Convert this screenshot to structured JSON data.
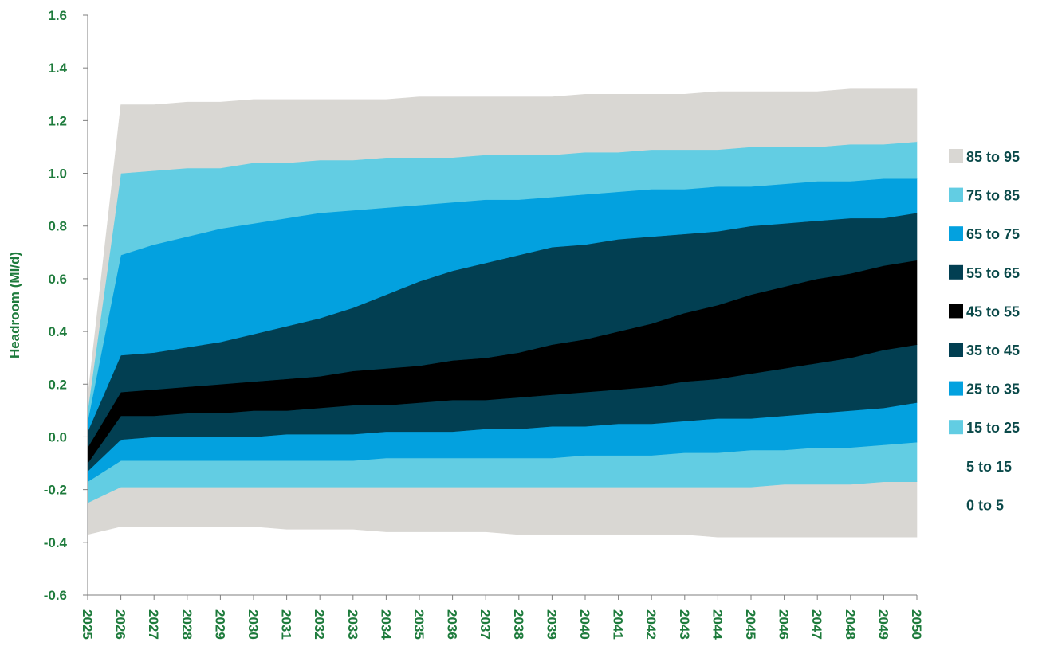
{
  "chart_data": {
    "type": "area",
    "ylabel": "Headroom (Ml/d)",
    "xlabel": "",
    "ylim": [
      -0.6,
      1.6
    ],
    "y_ticks": [
      "-0.6",
      "-0.4",
      "-0.2",
      "0.0",
      "0.2",
      "0.4",
      "0.6",
      "0.8",
      "1.0",
      "1.2",
      "1.4",
      "1.6"
    ],
    "x": [
      "2025",
      "2026",
      "2027",
      "2028",
      "2029",
      "2030",
      "2031",
      "2032",
      "2033",
      "2034",
      "2035",
      "2036",
      "2037",
      "2038",
      "2039",
      "2040",
      "2041",
      "2042",
      "2043",
      "2044",
      "2045",
      "2046",
      "2047",
      "2048",
      "2049",
      "2050"
    ],
    "grid": false,
    "legend_position": "right",
    "boundaries": {
      "p0": [
        -0.37,
        -0.34,
        -0.34,
        -0.34,
        -0.34,
        -0.34,
        -0.35,
        -0.35,
        -0.35,
        -0.36,
        -0.36,
        -0.36,
        -0.36,
        -0.37,
        -0.37,
        -0.37,
        -0.37,
        -0.37,
        -0.37,
        -0.38,
        -0.38,
        -0.38,
        -0.38,
        -0.38,
        -0.38,
        -0.38
      ],
      "p5": [
        -0.25,
        -0.19,
        -0.19,
        -0.19,
        -0.19,
        -0.19,
        -0.19,
        -0.19,
        -0.19,
        -0.19,
        -0.19,
        -0.19,
        -0.19,
        -0.19,
        -0.19,
        -0.19,
        -0.19,
        -0.19,
        -0.19,
        -0.19,
        -0.19,
        -0.18,
        -0.18,
        -0.18,
        -0.17,
        -0.17
      ],
      "p15": [
        -0.17,
        -0.09,
        -0.09,
        -0.09,
        -0.09,
        -0.09,
        -0.09,
        -0.09,
        -0.09,
        -0.08,
        -0.08,
        -0.08,
        -0.08,
        -0.08,
        -0.08,
        -0.07,
        -0.07,
        -0.07,
        -0.06,
        -0.06,
        -0.05,
        -0.05,
        -0.04,
        -0.04,
        -0.03,
        -0.02
      ],
      "p25": [
        -0.13,
        -0.01,
        0.0,
        0.0,
        0.0,
        0.0,
        0.01,
        0.01,
        0.01,
        0.02,
        0.02,
        0.02,
        0.03,
        0.03,
        0.04,
        0.04,
        0.05,
        0.05,
        0.06,
        0.07,
        0.07,
        0.08,
        0.09,
        0.1,
        0.11,
        0.13
      ],
      "p35": [
        -0.1,
        0.08,
        0.08,
        0.09,
        0.09,
        0.1,
        0.1,
        0.11,
        0.12,
        0.12,
        0.13,
        0.14,
        0.14,
        0.15,
        0.16,
        0.17,
        0.18,
        0.19,
        0.21,
        0.22,
        0.24,
        0.26,
        0.28,
        0.3,
        0.33,
        0.35
      ],
      "p45": [
        -0.04,
        0.17,
        0.18,
        0.19,
        0.2,
        0.21,
        0.22,
        0.23,
        0.25,
        0.26,
        0.27,
        0.29,
        0.3,
        0.32,
        0.35,
        0.37,
        0.4,
        0.43,
        0.47,
        0.5,
        0.54,
        0.57,
        0.6,
        0.62,
        0.65,
        0.67
      ],
      "p55": [
        0.02,
        0.31,
        0.32,
        0.34,
        0.36,
        0.39,
        0.42,
        0.45,
        0.49,
        0.54,
        0.59,
        0.63,
        0.66,
        0.69,
        0.72,
        0.73,
        0.75,
        0.76,
        0.77,
        0.78,
        0.8,
        0.81,
        0.82,
        0.83,
        0.83,
        0.85
      ],
      "p65": [
        0.06,
        0.69,
        0.73,
        0.76,
        0.79,
        0.81,
        0.83,
        0.85,
        0.86,
        0.87,
        0.88,
        0.89,
        0.9,
        0.9,
        0.91,
        0.92,
        0.93,
        0.94,
        0.94,
        0.95,
        0.95,
        0.96,
        0.97,
        0.97,
        0.98,
        0.98
      ],
      "p75": [
        0.1,
        1.0,
        1.01,
        1.02,
        1.02,
        1.04,
        1.04,
        1.05,
        1.05,
        1.06,
        1.06,
        1.06,
        1.07,
        1.07,
        1.07,
        1.08,
        1.08,
        1.09,
        1.09,
        1.09,
        1.1,
        1.1,
        1.1,
        1.11,
        1.11,
        1.12
      ],
      "p85": [
        0.15,
        1.26,
        1.26,
        1.27,
        1.27,
        1.28,
        1.28,
        1.28,
        1.28,
        1.28,
        1.29,
        1.29,
        1.29,
        1.29,
        1.29,
        1.3,
        1.3,
        1.3,
        1.3,
        1.31,
        1.31,
        1.31,
        1.31,
        1.32,
        1.32,
        1.32
      ]
    },
    "series": [
      {
        "name": "85 to 95",
        "lower": "p0",
        "upper": "p5",
        "color": "#d9d7d3"
      },
      {
        "name": "75 to 85",
        "lower": "p5",
        "upper": "p15",
        "color": "#62cde3"
      },
      {
        "name": "65 to 75",
        "lower": "p15",
        "upper": "p25",
        "color": "#03a1df"
      },
      {
        "name": "55 to 65",
        "lower": "p25",
        "upper": "p35",
        "color": "#023f52"
      },
      {
        "name": "45 to 55",
        "lower": "p35",
        "upper": "p45",
        "color": "#000000"
      },
      {
        "name": "35 to 45",
        "lower": "p45",
        "upper": "p55",
        "color": "#023f52"
      },
      {
        "name": "25 to 35",
        "lower": "p55",
        "upper": "p65",
        "color": "#03a1df"
      },
      {
        "name": "15 to 25",
        "lower": "p65",
        "upper": "p75",
        "color": "#62cde3"
      },
      {
        "name": "5 to 15",
        "lower": "p75",
        "upper": "p85",
        "color": "#d9d7d3"
      }
    ],
    "legend": [
      {
        "label": "85 to 95",
        "color": "#d9d7d3"
      },
      {
        "label": "75 to 85",
        "color": "#62cde3"
      },
      {
        "label": "65 to 75",
        "color": "#03a1df"
      },
      {
        "label": "55 to 65",
        "color": "#023f52"
      },
      {
        "label": "45 to 55",
        "color": "#000000"
      },
      {
        "label": "35 to 45",
        "color": "#023f52"
      },
      {
        "label": "25 to 35",
        "color": "#03a1df"
      },
      {
        "label": "15 to 25",
        "color": "#62cde3"
      },
      {
        "label": "5 to 15",
        "color": null
      },
      {
        "label": "0 to 5",
        "color": null
      }
    ]
  }
}
